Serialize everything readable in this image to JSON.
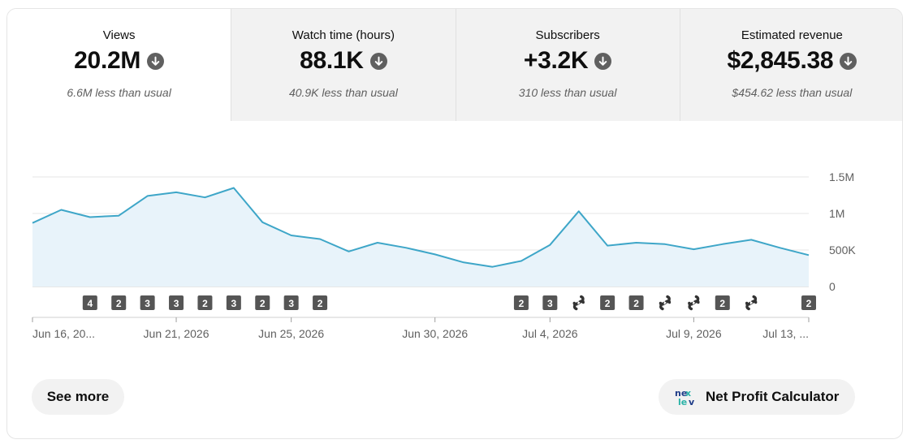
{
  "metrics": [
    {
      "title": "Views",
      "value": "20.2M",
      "sub": "6.6M less than usual"
    },
    {
      "title": "Watch time (hours)",
      "value": "88.1K",
      "sub": "40.9K less than usual"
    },
    {
      "title": "Subscribers",
      "value": "+3.2K",
      "sub": "310 less than usual"
    },
    {
      "title": "Estimated revenue",
      "value": "$2,845.38",
      "sub": "$454.62 less than usual"
    }
  ],
  "chart_data": {
    "type": "area",
    "series": [
      {
        "values": [
          0.87,
          1.05,
          0.95,
          0.97,
          1.24,
          1.29,
          1.22,
          1.35,
          0.88,
          0.7,
          0.65,
          0.48,
          0.6,
          0.53,
          0.44,
          0.33,
          0.27,
          0.35,
          0.57,
          1.03,
          0.56,
          0.6,
          0.58,
          0.51,
          0.58,
          0.64,
          0.53,
          0.43
        ]
      }
    ],
    "ylim": [
      0,
      1.5
    ],
    "y_ticks": [
      {
        "value": 1.5,
        "label": "1.5M"
      },
      {
        "value": 1.0,
        "label": "1M"
      },
      {
        "value": 0.5,
        "label": "500K"
      },
      {
        "value": 0,
        "label": "0"
      }
    ],
    "x_ticks": [
      {
        "index": 0,
        "label": "Jun 16, 20..."
      },
      {
        "index": 5,
        "label": "Jun 21, 2026"
      },
      {
        "index": 9,
        "label": "Jun 25, 2026"
      },
      {
        "index": 14,
        "label": "Jun 30, 2026"
      },
      {
        "index": 18,
        "label": "Jul 4, 2026"
      },
      {
        "index": 23,
        "label": "Jul 9, 2026"
      },
      {
        "index": 27,
        "label": "Jul 13, ..."
      }
    ],
    "markers": [
      {
        "index": 2,
        "type": "count",
        "label": "4"
      },
      {
        "index": 3,
        "type": "count",
        "label": "2"
      },
      {
        "index": 4,
        "type": "count",
        "label": "3"
      },
      {
        "index": 5,
        "type": "count",
        "label": "3"
      },
      {
        "index": 6,
        "type": "count",
        "label": "2"
      },
      {
        "index": 7,
        "type": "count",
        "label": "3"
      },
      {
        "index": 8,
        "type": "count",
        "label": "2"
      },
      {
        "index": 9,
        "type": "count",
        "label": "3"
      },
      {
        "index": 10,
        "type": "count",
        "label": "2"
      },
      {
        "index": 17,
        "type": "count",
        "label": "2"
      },
      {
        "index": 18,
        "type": "count",
        "label": "3"
      },
      {
        "index": 19,
        "type": "shorts",
        "icon": "shorts-icon"
      },
      {
        "index": 20,
        "type": "count",
        "label": "2"
      },
      {
        "index": 21,
        "type": "count",
        "label": "2"
      },
      {
        "index": 22,
        "type": "shorts",
        "icon": "shorts-icon"
      },
      {
        "index": 23,
        "type": "shorts",
        "icon": "shorts-icon"
      },
      {
        "index": 24,
        "type": "count",
        "label": "2"
      },
      {
        "index": 25,
        "type": "shorts",
        "icon": "shorts-icon"
      },
      {
        "index": 27,
        "type": "count",
        "label": "2"
      }
    ],
    "line_color": "#3ea6c8",
    "fill_color": "#e8f3fa"
  },
  "buttons": {
    "see_more": "See more",
    "npc": "Net Profit Calculator"
  },
  "npc_logo_icon": "nexlev-logo-icon"
}
